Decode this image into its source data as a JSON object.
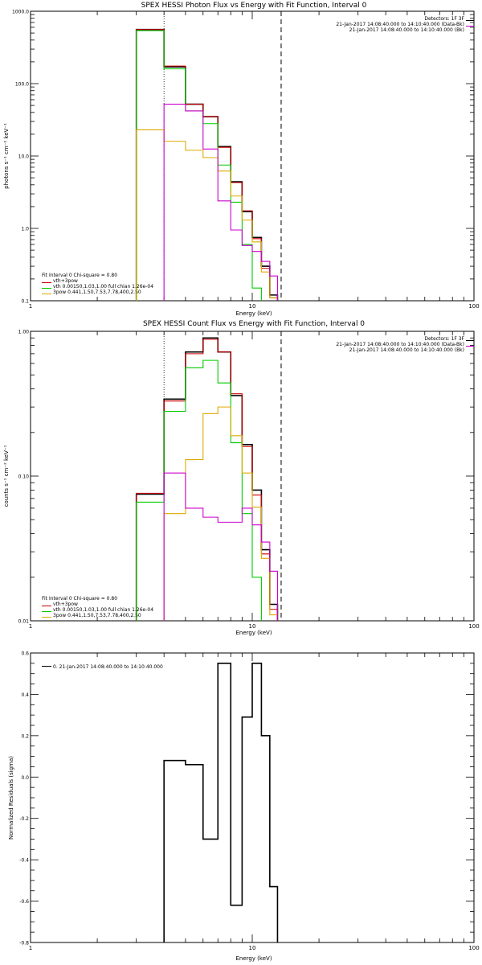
{
  "chart_data": [
    {
      "type": "line",
      "title": "SPEX HESSI Photon Flux vs Energy with Fit Function, Interval 0",
      "xlabel": "Energy (keV)",
      "ylabel": "photons s⁻¹ cm⁻² keV⁻¹",
      "xscale": "log",
      "yscale": "log",
      "xlim": [
        1,
        100
      ],
      "ylim": [
        0.1,
        1000
      ],
      "x_ticks": [
        "1",
        "10",
        "100"
      ],
      "y_ticks": [
        "0.1",
        "1.0",
        "10.0",
        "100.0",
        "1000.0"
      ],
      "vlines": [
        {
          "x": 4,
          "style": "dotted"
        },
        {
          "x": 13.5,
          "style": "dashed"
        }
      ],
      "legend_top": [
        "Detectors: 1F 3F",
        "21-Jan-2017 14:08:40.000 to 14:10:40.000 (Data-Bk)",
        "21-Jan-2017 14:08:40.000 to 14:10:40.000 (Bk)"
      ],
      "legend_bottom_title": "Fit Interval 0   Chi-square = 0.80",
      "legend_bottom": [
        "vth+3pow",
        "vth 0.00150,1.03,1.00  full chian 1.26e-04",
        "3pow 0.441,1.50,7.53,7.78,400,2.50"
      ],
      "bin_edges": [
        3,
        4,
        5,
        6,
        7,
        8,
        9,
        10,
        11,
        12,
        13,
        14
      ],
      "series": [
        {
          "name": "21-Jan-2017 14:08:40.000 to 14:10:40.000 (Data-Bk)",
          "color": "#000000",
          "values": [
            560,
            170,
            52,
            35,
            13.5,
            4.4,
            1.7,
            0.75,
            0.3,
            0.12,
            null
          ]
        },
        {
          "name": "21-Jan-2017 14:08:40.000 to 14:10:40.000 (Bk)",
          "color": "#cc00cc",
          "values": [
            null,
            52,
            42,
            12.5,
            2.4,
            0.95,
            0.58,
            0.48,
            0.35,
            0.22,
            null
          ]
        },
        {
          "name": "vth+3pow",
          "color": "#cc0000",
          "values": [
            560,
            175,
            52,
            35,
            13.2,
            4.3,
            1.75,
            0.72,
            0.28,
            0.11,
            null
          ]
        },
        {
          "name": "vth 0.00150,1.03,1.00  full chian 1.26e-04",
          "color": "#00cc00",
          "values": [
            540,
            160,
            42,
            28,
            7.5,
            2.3,
            0.6,
            0.15,
            null,
            null,
            null
          ]
        },
        {
          "name": "3pow 0.441,1.50,7.53,7.78,400,2.50",
          "color": "#ddaa00",
          "values": [
            23,
            16,
            12,
            9.5,
            6.2,
            2.8,
            1.3,
            0.65,
            0.25,
            0.11,
            null
          ]
        }
      ]
    },
    {
      "type": "line",
      "title": "SPEX HESSI Count Flux vs Energy with Fit Function, Interval 0",
      "xlabel": "Energy (keV)",
      "ylabel": "counts s⁻¹ cm⁻² keV⁻¹",
      "xscale": "log",
      "yscale": "log",
      "xlim": [
        1,
        100
      ],
      "ylim": [
        0.01,
        1
      ],
      "x_ticks": [
        "1",
        "10",
        "100"
      ],
      "y_ticks": [
        "0.01",
        "0.10",
        "1.00"
      ],
      "vlines": [
        {
          "x": 4,
          "style": "dotted"
        },
        {
          "x": 13.5,
          "style": "dashed"
        }
      ],
      "legend_top": [
        "Detectors: 1F 3F",
        "21-Jan-2017 14:08:40.000 to 14:10:40.000 (Data-Bk)",
        "21-Jan-2017 14:08:40.000 to 14:10:40.000 (Bk)"
      ],
      "legend_bottom_title": "Fit Interval 0   Chi-square = 0.80",
      "legend_bottom": [
        "vth+3pow",
        "vth 0.00150,1.03,1.00  full chian 1.26e-04",
        "3pow 0.441,1.50,7.53,7.78,400,2.50"
      ],
      "bin_edges": [
        3,
        4,
        5,
        6,
        7,
        8,
        9,
        10,
        11,
        12,
        13,
        14
      ],
      "series": [
        {
          "name": "21-Jan-2017 14:08:40.000 to 14:10:40.000 (Data-Bk)",
          "color": "#000000",
          "values": [
            0.075,
            0.34,
            0.72,
            0.9,
            0.72,
            0.36,
            0.165,
            0.08,
            0.031,
            0.013,
            null
          ]
        },
        {
          "name": "21-Jan-2017 14:08:40.000 to 14:10:40.000 (Bk)",
          "color": "#cc00cc",
          "values": [
            null,
            0.105,
            0.06,
            0.052,
            0.048,
            0.048,
            0.06,
            0.046,
            0.035,
            0.022,
            null
          ]
        },
        {
          "name": "vth+3pow",
          "color": "#cc0000",
          "values": [
            0.076,
            0.33,
            0.7,
            0.88,
            0.72,
            0.37,
            0.16,
            0.074,
            0.029,
            0.012,
            null
          ]
        },
        {
          "name": "vth 0.00150,1.03,1.00  full chian 1.26e-04",
          "color": "#00cc00",
          "values": [
            0.066,
            0.28,
            0.56,
            0.63,
            0.44,
            0.17,
            0.055,
            0.02,
            null,
            null,
            null
          ]
        },
        {
          "name": "3pow 0.441,1.50,7.53,7.78,400,2.50",
          "color": "#ddaa00",
          "values": [
            null,
            0.055,
            0.13,
            0.27,
            0.3,
            0.19,
            0.105,
            0.061,
            0.027,
            0.011,
            null
          ]
        }
      ]
    },
    {
      "type": "line",
      "title": "",
      "xlabel": "Energy (keV)",
      "ylabel": "Normalized Residuals (sigma)",
      "xscale": "log",
      "yscale": "linear",
      "xlim": [
        1,
        100
      ],
      "ylim": [
        -0.8,
        0.6
      ],
      "x_ticks": [
        "1",
        "10",
        "100"
      ],
      "y_ticks": [
        "-0.8",
        "-0.6",
        "-0.4",
        "-0.2",
        "0.0",
        "0.2",
        "0.4",
        "0.6"
      ],
      "legend": [
        "0. 21-Jan-2017 14:08:40.000 to 14:10:40.000"
      ],
      "bin_edges": [
        4,
        5,
        6,
        7,
        8,
        9,
        10,
        11,
        12,
        13
      ],
      "series": [
        {
          "name": "0. 21-Jan-2017 14:08:40.000 to 14:10:40.000",
          "color": "#000000",
          "values": [
            0.08,
            0.06,
            -0.3,
            0.55,
            -0.62,
            0.29,
            0.55,
            0.2,
            -0.53
          ]
        }
      ]
    }
  ]
}
